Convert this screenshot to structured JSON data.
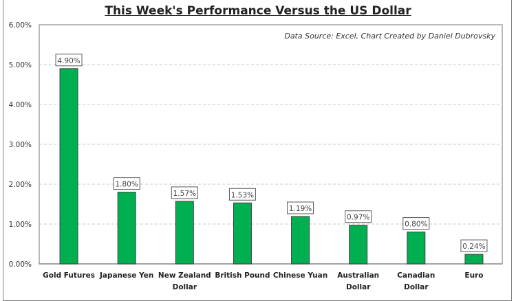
{
  "chart_data": {
    "type": "bar",
    "title": "This Week's Performance Versus the US Dollar",
    "annotation": "Data Source: Excel, Chart Created by Daniel Dubrovsky",
    "xlabel": "",
    "ylabel": "",
    "ylim": [
      0,
      6
    ],
    "yticks": [
      "0.00%",
      "1.00%",
      "2.00%",
      "3.00%",
      "4.00%",
      "5.00%",
      "6.00%"
    ],
    "grid": true,
    "categories": [
      [
        "Gold Futures"
      ],
      [
        "Japanese Yen"
      ],
      [
        "New Zealand",
        "Dollar"
      ],
      [
        "British Pound"
      ],
      [
        "Chinese Yuan"
      ],
      [
        "Australian",
        "Dollar"
      ],
      [
        "Canadian",
        "Dollar"
      ],
      [
        "Euro"
      ]
    ],
    "values": [
      4.9,
      1.8,
      1.57,
      1.53,
      1.19,
      0.97,
      0.8,
      0.24
    ],
    "data_labels": [
      "4.90%",
      "1.80%",
      "1.57%",
      "1.53%",
      "1.19%",
      "0.97%",
      "0.80%",
      "0.24%"
    ],
    "bar_color": "#00b050"
  }
}
